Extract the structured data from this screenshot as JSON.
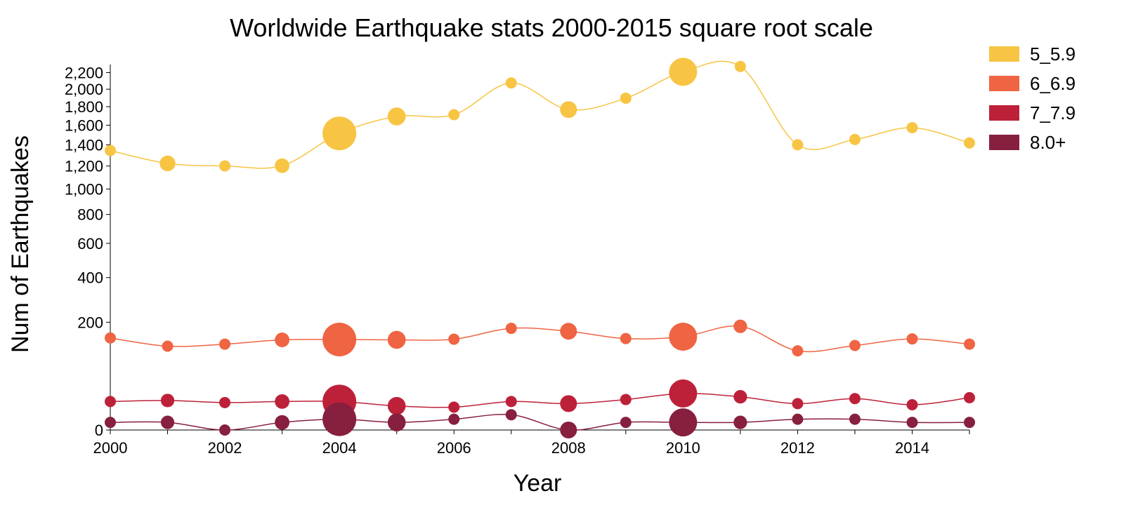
{
  "chart_data": {
    "type": "line",
    "title": "Worldwide Earthquake stats 2000-2015 square root scale",
    "xlabel": "Year",
    "ylabel": "Num of Earthquakes",
    "y_scale": "sqrt",
    "ylim": [
      0,
      2300
    ],
    "xlim": [
      2000,
      2015
    ],
    "x_ticks": [
      "2000",
      "2002",
      "2004",
      "2006",
      "2008",
      "2010",
      "2012",
      "2014"
    ],
    "y_ticks": [
      "0",
      "200",
      "400",
      "600",
      "800",
      "1,000",
      "1,200",
      "1,400",
      "1,600",
      "1,800",
      "2,000",
      "2,200"
    ],
    "x": [
      2000,
      2001,
      2002,
      2003,
      2004,
      2005,
      2006,
      2007,
      2008,
      2009,
      2010,
      2011,
      2012,
      2013,
      2014,
      2015
    ],
    "legend_position": "top-right",
    "grid": false,
    "bubble_size_note": "circle radius varies; largest markers in 2004 and 2010",
    "series": [
      {
        "name": "5_5.9",
        "color": "#f7c543",
        "values": [
          1345,
          1224,
          1201,
          1203,
          1515,
          1693,
          1712,
          2074,
          1768,
          1896,
          2209,
          2276,
          1401,
          1453,
          1574,
          1419
        ],
        "sizes": [
          1,
          1.4,
          1,
          1.3,
          3,
          1.6,
          1,
          1,
          1.5,
          1,
          2.5,
          1,
          1,
          1,
          1,
          1
        ]
      },
      {
        "name": "6_6.9",
        "color": "#ef6442",
        "values": [
          146,
          121,
          127,
          140,
          141,
          140,
          142,
          178,
          168,
          144,
          150,
          185,
          108,
          123,
          143,
          127
        ],
        "sizes": [
          1,
          1,
          1,
          1.3,
          3,
          1.6,
          1,
          1,
          1.5,
          1,
          2.5,
          1.2,
          1,
          1,
          1,
          1
        ]
      },
      {
        "name": "7_7.9",
        "color": "#bd2139",
        "values": [
          14,
          15,
          13,
          14,
          14,
          10,
          9,
          14,
          12,
          16,
          23,
          19,
          12,
          17,
          11,
          18
        ],
        "sizes": [
          1,
          1.2,
          1,
          1.3,
          3,
          1.6,
          1,
          1,
          1.5,
          1,
          2.5,
          1.2,
          1,
          1,
          1,
          1
        ]
      },
      {
        "name": "8.0+",
        "color": "#871f3e",
        "values": [
          1,
          1,
          0,
          1,
          2,
          1,
          2,
          4,
          0,
          1,
          1,
          1,
          2,
          2,
          1,
          1
        ],
        "sizes": [
          1,
          1.2,
          1,
          1.3,
          3,
          1.6,
          1,
          1,
          1.5,
          1,
          2.5,
          1.2,
          1,
          1,
          1,
          1
        ]
      }
    ]
  }
}
